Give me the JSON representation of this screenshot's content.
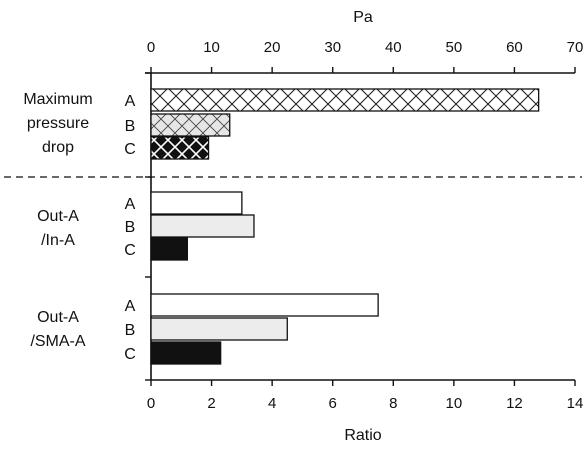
{
  "chart_data": {
    "type": "bar",
    "orientation": "horizontal",
    "top_axis": {
      "label": "Pa",
      "ticks": [
        "0",
        "10",
        "20",
        "30",
        "40",
        "50",
        "60",
        "70"
      ],
      "range": [
        0,
        70
      ]
    },
    "bottom_axis": {
      "label": "Ratio",
      "ticks": [
        "0",
        "2",
        "4",
        "6",
        "8",
        "10",
        "12",
        "14"
      ],
      "range": [
        0,
        14
      ]
    },
    "groups": [
      {
        "name_lines": [
          "Maximum",
          "pressure",
          "drop"
        ],
        "axis": "top",
        "bars": [
          {
            "series": "A",
            "value": 64.0,
            "fill": "crosshatch"
          },
          {
            "series": "B",
            "value": 13.0,
            "fill": "crosshatch"
          },
          {
            "series": "C",
            "value": 9.5,
            "fill": "crosshatch-dark"
          }
        ]
      },
      {
        "name_lines": [
          "Out-A",
          "/In-A"
        ],
        "axis": "bottom",
        "bars": [
          {
            "series": "A",
            "value": 3.0,
            "fill": "white"
          },
          {
            "series": "B",
            "value": 3.4,
            "fill": "light-gray"
          },
          {
            "series": "C",
            "value": 1.2,
            "fill": "black"
          }
        ]
      },
      {
        "name_lines": [
          "Out-A",
          "/SMA-A"
        ],
        "axis": "bottom",
        "bars": [
          {
            "series": "A",
            "value": 7.5,
            "fill": "white"
          },
          {
            "series": "B",
            "value": 4.5,
            "fill": "light-gray"
          },
          {
            "series": "C",
            "value": 2.3,
            "fill": "black"
          }
        ]
      }
    ],
    "grid": false,
    "separator": "dashed line between pressure group and ratio groups"
  }
}
